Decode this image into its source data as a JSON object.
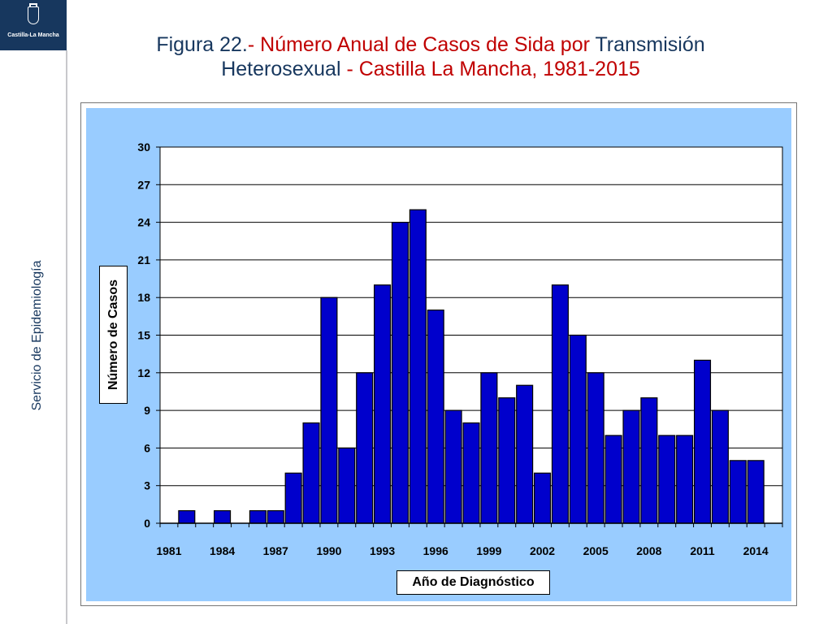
{
  "header": {
    "logo_text": "Castilla-La Mancha",
    "title_line1_prefix": "Figura 22.",
    "title_line1_middle": "- Número Anual de Casos de Sida por ",
    "title_line1_suffix": "Transmisión",
    "title_line2_prefix": "Heterosexual",
    "title_line2_suffix": " - Castilla La Mancha, 1981-2015"
  },
  "sidebar": {
    "label": "Servicio de Epidemiología"
  },
  "colors": {
    "bar": "#0000cc",
    "plot_bg": "#ffffff",
    "chart_bg": "#99ccff",
    "title_blue": "#17375e",
    "title_red": "#c00000"
  },
  "chart_data": {
    "type": "bar",
    "title": "",
    "xlabel": "Año de Diagnóstico",
    "ylabel": "Número de Casos",
    "ylim": [
      0,
      30
    ],
    "yticks": [
      0,
      3,
      6,
      9,
      12,
      15,
      18,
      21,
      24,
      27,
      30
    ],
    "xtick_labels": [
      "1981",
      "1984",
      "1987",
      "1990",
      "1993",
      "1996",
      "1999",
      "2002",
      "2005",
      "2008",
      "2011",
      "2014"
    ],
    "grid": "horizontal",
    "categories": [
      "1981",
      "1982",
      "1983",
      "1984",
      "1985",
      "1986",
      "1987",
      "1988",
      "1989",
      "1990",
      "1991",
      "1992",
      "1993",
      "1994",
      "1995",
      "1996",
      "1997",
      "1998",
      "1999",
      "2000",
      "2001",
      "2002",
      "2003",
      "2004",
      "2005",
      "2006",
      "2007",
      "2008",
      "2009",
      "2010",
      "2011",
      "2012",
      "2013",
      "2014",
      "2015"
    ],
    "values": [
      0,
      1,
      0,
      1,
      0,
      1,
      1,
      4,
      8,
      18,
      6,
      12,
      19,
      24,
      25,
      17,
      9,
      8,
      12,
      10,
      11,
      4,
      19,
      15,
      12,
      7,
      9,
      10,
      7,
      7,
      13,
      9,
      5,
      5,
      0
    ]
  }
}
